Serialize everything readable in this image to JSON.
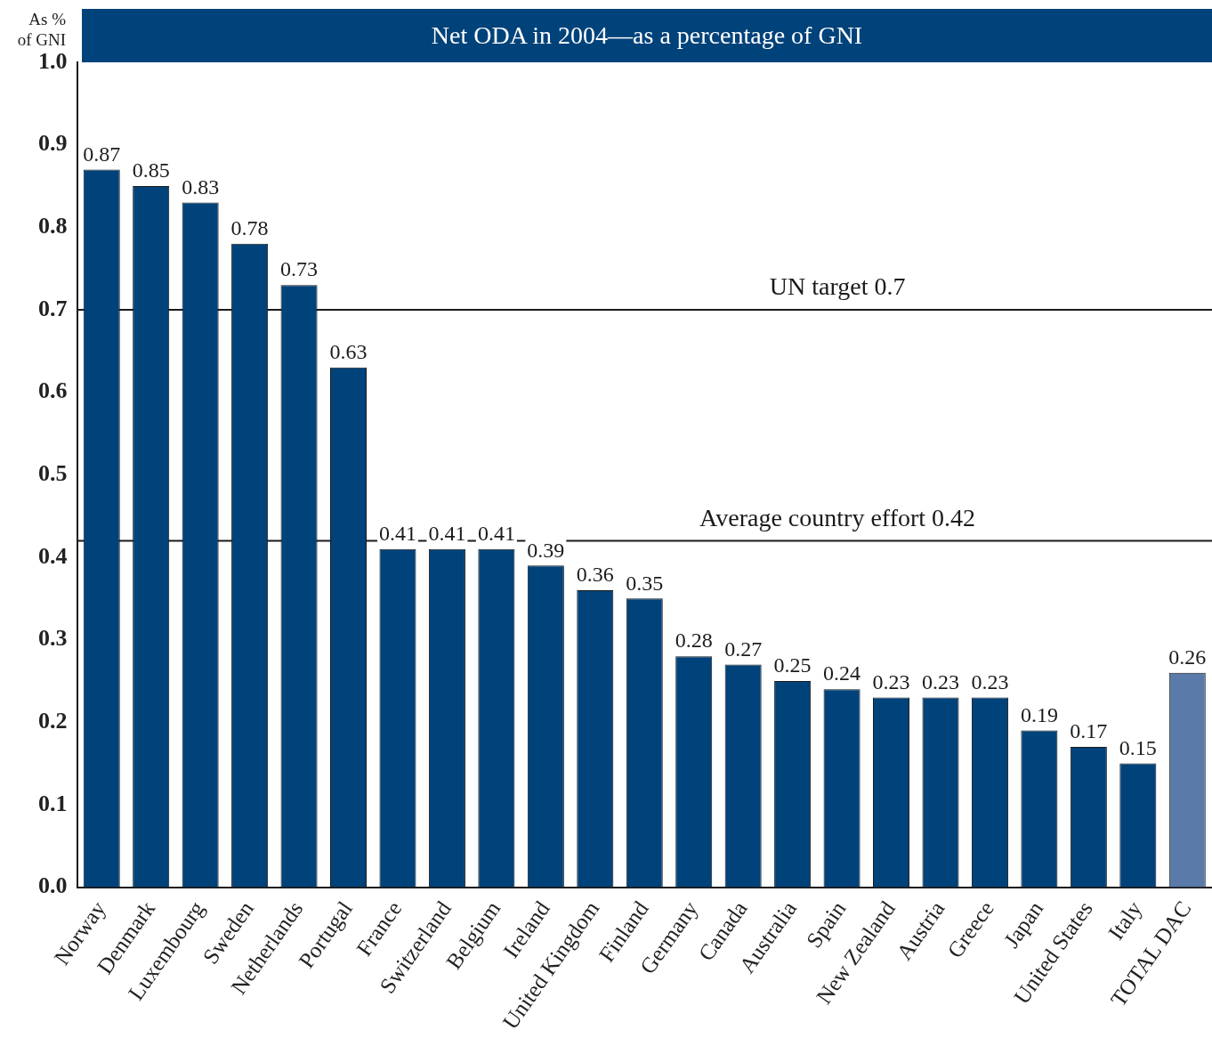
{
  "chart_data": {
    "type": "bar",
    "title": "Net ODA in 2004—as a percentage of GNI",
    "ylabel": "As % of GNI",
    "categories": [
      "Norway",
      "Denmark",
      "Luxembourg",
      "Sweden",
      "Netherlands",
      "Portugal",
      "France",
      "Switzerland",
      "Belgium",
      "Ireland",
      "United Kingdom",
      "Finland",
      "Germany",
      "Canada",
      "Australia",
      "Spain",
      "New Zealand",
      "Austria",
      "Greece",
      "Japan",
      "United States",
      "Italy",
      "TOTAL DAC"
    ],
    "values": [
      0.87,
      0.85,
      0.83,
      0.78,
      0.73,
      0.63,
      0.41,
      0.41,
      0.41,
      0.39,
      0.36,
      0.35,
      0.28,
      0.27,
      0.25,
      0.24,
      0.23,
      0.23,
      0.23,
      0.19,
      0.17,
      0.15,
      0.26
    ],
    "colors": [
      "#00427a",
      "#00427a",
      "#00427a",
      "#00427a",
      "#00427a",
      "#00427a",
      "#00427a",
      "#00427a",
      "#00427a",
      "#00427a",
      "#00427a",
      "#00427a",
      "#00427a",
      "#00427a",
      "#00427a",
      "#00427a",
      "#00427a",
      "#00427a",
      "#00427a",
      "#00427a",
      "#00427a",
      "#00427a",
      "#5a7aaa"
    ],
    "ylim": [
      0,
      1
    ],
    "yticks": [
      {
        "value": 0,
        "label": "0.0"
      },
      0.1,
      0.2,
      0.3,
      0.4,
      0.5,
      0.6,
      0.7,
      0.8,
      0.9,
      {
        "value": 1,
        "label": "1.0"
      }
    ],
    "ref_lines": [
      {
        "axis": "y",
        "value": 0.7,
        "label": "UN target 0.7",
        "color": "#1a1a1a"
      },
      {
        "axis": "y",
        "value": 0.42,
        "label": "Average country effort 0.42",
        "color": "#1a1a1a"
      }
    ],
    "data_labels": true,
    "grid": false,
    "legend": false
  }
}
